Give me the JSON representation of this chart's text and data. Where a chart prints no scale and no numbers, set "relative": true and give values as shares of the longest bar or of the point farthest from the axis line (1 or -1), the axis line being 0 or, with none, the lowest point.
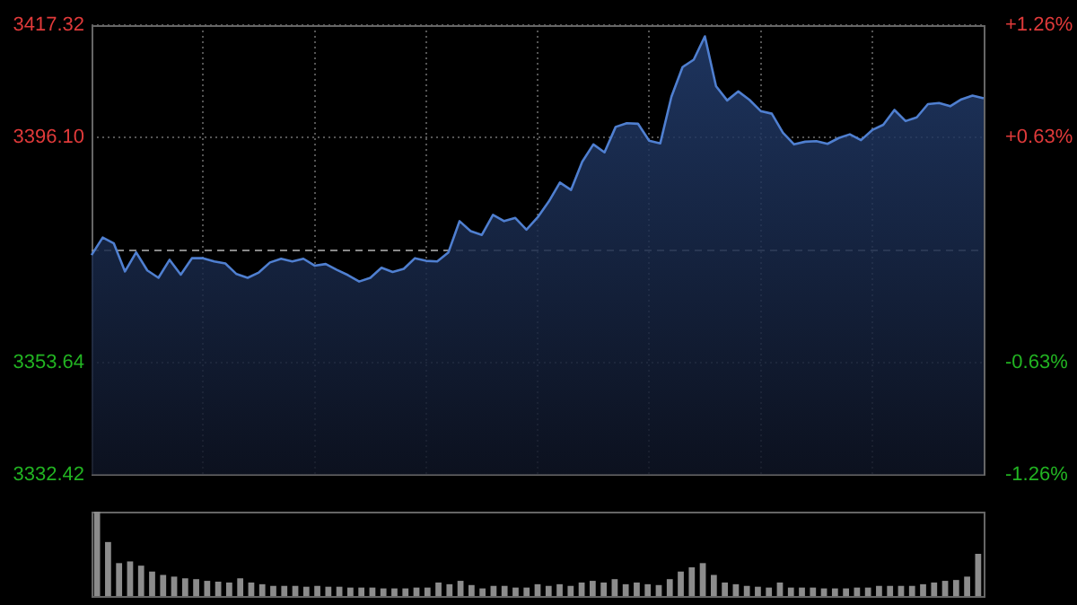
{
  "chart_data": [
    {
      "type": "area",
      "categories": [
        null,
        null,
        null,
        null,
        null,
        null,
        null,
        null,
        null,
        null,
        null,
        null,
        null,
        null,
        null,
        null,
        null,
        null,
        null,
        null,
        null,
        null,
        null,
        null,
        null,
        null,
        null,
        null,
        null,
        null,
        null,
        null,
        null,
        null,
        null,
        null,
        null,
        null,
        null,
        null,
        null,
        null,
        null,
        null,
        null,
        null,
        null,
        null,
        null,
        null,
        null,
        null,
        null,
        null,
        null,
        null,
        null,
        null,
        null,
        null,
        null,
        null,
        null,
        null,
        null,
        null,
        null,
        null,
        null,
        null,
        null,
        null,
        null,
        null,
        null,
        null,
        null,
        null,
        null,
        null,
        null
      ],
      "series": [
        {
          "color": "#4f7fd0",
          "values": [
            3373.9,
            3377.2,
            3376.1,
            3370.8,
            3374.4,
            3371.0,
            3369.6,
            3373.0,
            3370.2,
            3373.3,
            3373.3,
            3372.7,
            3372.3,
            3370.3,
            3369.6,
            3370.6,
            3372.5,
            3373.2,
            3372.7,
            3373.2,
            3371.9,
            3372.2,
            3371.1,
            3370.1,
            3368.9,
            3369.6,
            3371.5,
            3370.7,
            3371.3,
            3373.3,
            3372.8,
            3372.7,
            3374.4,
            3380.3,
            3378.4,
            3377.7,
            3381.5,
            3380.3,
            3380.9,
            3378.7,
            3381.0,
            3384.0,
            3387.6,
            3386.2,
            3391.5,
            3394.8,
            3393.3,
            3398.1,
            3398.8,
            3398.7,
            3395.5,
            3395.0,
            3403.8,
            3409.4,
            3410.8,
            3415.2,
            3405.8,
            3403.1,
            3404.8,
            3403.2,
            3401.1,
            3400.6,
            3397.0,
            3394.8,
            3395.3,
            3395.4,
            3394.9,
            3396.0,
            3396.7,
            3395.6,
            3397.5,
            3398.5,
            3401.3,
            3399.2,
            3399.9,
            3402.4,
            3402.6,
            3402.0,
            3403.3,
            3404.0,
            3403.5
          ]
        }
      ],
      "ylim": [
        3332.42,
        3417.32
      ],
      "yticks": [
        3332.42,
        3353.64,
        {
          "value": 3396.1,
          "label": "3396.10"
        },
        3417.32
      ],
      "y2lim": [
        -1.26,
        1.26
      ],
      "y2ticks": [
        {
          "value": -1.26,
          "label": "-1.26%"
        },
        {
          "value": -0.63,
          "label": "-0.63%"
        },
        {
          "value": 0.63,
          "label": "+0.63%"
        },
        {
          "value": 1.26,
          "label": "+1.26%"
        }
      ],
      "ref_lines": [
        {
          "axis": "y",
          "value": 3374.87,
          "color": "#888888",
          "line_style": "dashed"
        }
      ],
      "grid": true,
      "legend": false,
      "tick_labels": "y"
    },
    {
      "type": "bar",
      "relative": true,
      "categories": [
        null,
        null,
        null,
        null,
        null,
        null,
        null,
        null,
        null,
        null,
        null,
        null,
        null,
        null,
        null,
        null,
        null,
        null,
        null,
        null,
        null,
        null,
        null,
        null,
        null,
        null,
        null,
        null,
        null,
        null,
        null,
        null,
        null,
        null,
        null,
        null,
        null,
        null,
        null,
        null,
        null,
        null,
        null,
        null,
        null,
        null,
        null,
        null,
        null,
        null,
        null,
        null,
        null,
        null,
        null,
        null,
        null,
        null,
        null,
        null,
        null,
        null,
        null,
        null,
        null,
        null,
        null,
        null,
        null,
        null,
        null,
        null,
        null,
        null,
        null,
        null,
        null,
        null,
        null,
        null,
        null
      ],
      "series": [
        {
          "color": "#8c8c8c",
          "values": [
            1,
            0.64,
            0.39,
            0.41,
            0.36,
            0.29,
            0.25,
            0.23,
            0.21,
            0.2,
            0.18,
            0.17,
            0.16,
            0.21,
            0.16,
            0.14,
            0.12,
            0.12,
            0.12,
            0.11,
            0.12,
            0.11,
            0.11,
            0.1,
            0.1,
            0.1,
            0.09,
            0.09,
            0.09,
            0.1,
            0.1,
            0.16,
            0.14,
            0.18,
            0.13,
            0.09,
            0.12,
            0.12,
            0.1,
            0.1,
            0.14,
            0.12,
            0.14,
            0.12,
            0.16,
            0.18,
            0.16,
            0.2,
            0.14,
            0.16,
            0.14,
            0.13,
            0.2,
            0.29,
            0.34,
            0.39,
            0.25,
            0.16,
            0.14,
            0.12,
            0.11,
            0.1,
            0.16,
            0.1,
            0.1,
            0.1,
            0.09,
            0.09,
            0.09,
            0.1,
            0.1,
            0.12,
            0.12,
            0.12,
            0.12,
            0.14,
            0.16,
            0.18,
            0.19,
            0.23,
            0.5
          ]
        }
      ],
      "grid": false,
      "legend": false,
      "tick_labels": false
    }
  ]
}
